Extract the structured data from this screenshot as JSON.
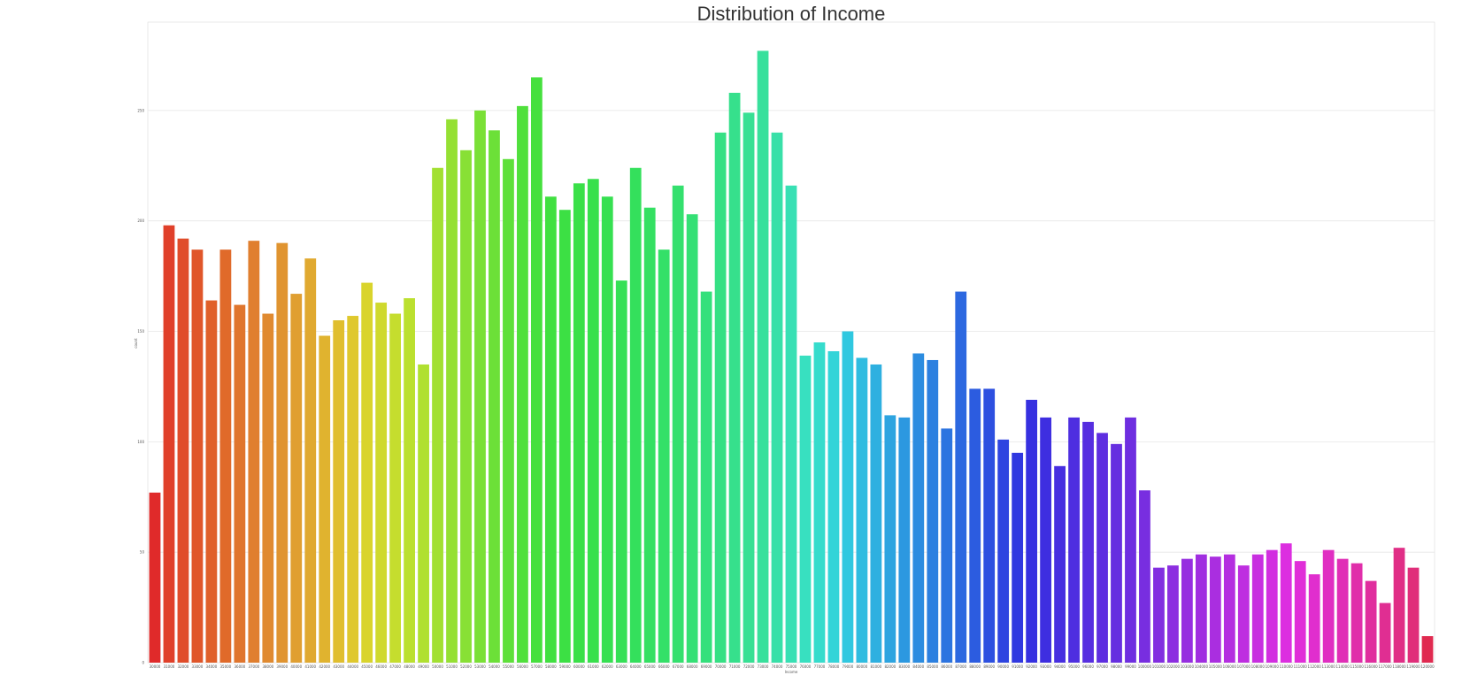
{
  "chart_data": {
    "type": "bar",
    "title": "Distribution of Income",
    "xlabel": "Income",
    "ylabel": "count",
    "ylim": [
      0,
      290
    ],
    "yticks": [
      0,
      50,
      100,
      150,
      200,
      250
    ],
    "grid": true,
    "legend": "none",
    "categories": [
      "30000",
      "31000",
      "32000",
      "33000",
      "34000",
      "35000",
      "36000",
      "37000",
      "38000",
      "39000",
      "40000",
      "41000",
      "42000",
      "43000",
      "44000",
      "45000",
      "46000",
      "47000",
      "48000",
      "49000",
      "50000",
      "51000",
      "52000",
      "53000",
      "54000",
      "55000",
      "56000",
      "57000",
      "58000",
      "59000",
      "60000",
      "61000",
      "62000",
      "63000",
      "64000",
      "65000",
      "66000",
      "67000",
      "68000",
      "69000",
      "70000",
      "71000",
      "72000",
      "73000",
      "74000",
      "75000",
      "76000",
      "77000",
      "78000",
      "79000",
      "80000",
      "81000",
      "82000",
      "83000",
      "84000",
      "85000",
      "86000",
      "87000",
      "88000",
      "89000",
      "90000",
      "91000",
      "92000",
      "93000",
      "94000",
      "95000",
      "96000",
      "97000",
      "98000",
      "99000",
      "100000",
      "101000",
      "102000",
      "103000",
      "104000",
      "105000",
      "106000",
      "107000",
      "108000",
      "109000",
      "110000",
      "111000",
      "112000",
      "113000",
      "114000",
      "115000",
      "116000",
      "117000",
      "118000",
      "119000",
      "120000"
    ],
    "values": [
      77,
      198,
      192,
      187,
      164,
      187,
      162,
      191,
      158,
      190,
      167,
      183,
      148,
      155,
      157,
      172,
      163,
      158,
      165,
      135,
      224,
      246,
      232,
      250,
      241,
      228,
      252,
      265,
      211,
      205,
      217,
      219,
      211,
      173,
      224,
      206,
      187,
      216,
      203,
      168,
      240,
      258,
      249,
      277,
      240,
      216,
      139,
      145,
      141,
      150,
      138,
      135,
      112,
      111,
      140,
      137,
      106,
      168,
      124,
      124,
      101,
      95,
      119,
      111,
      89,
      111,
      109,
      104,
      99,
      111,
      78,
      43,
      44,
      47,
      49,
      48,
      49,
      44,
      49,
      51,
      54,
      46,
      40,
      51,
      47,
      45,
      37,
      27,
      52,
      43,
      12
    ],
    "colors": [
      "#e02a2a",
      "#e0402a",
      "#e04c2a",
      "#e0562a",
      "#e0602a",
      "#e06a2a",
      "#e0752d",
      "#e07f2f",
      "#e08a30",
      "#e09430",
      "#e09f31",
      "#e0a930",
      "#e0b32f",
      "#e0be2e",
      "#dfc82d",
      "#d9d42c",
      "#cfd92d",
      "#c5dd2e",
      "#bbe02f",
      "#b0e030",
      "#a2e031",
      "#95e033",
      "#88e035",
      "#7ae036",
      "#6ce038",
      "#5ee03a",
      "#50e03c",
      "#46e03e",
      "#40e040",
      "#3ce044",
      "#3ae048",
      "#38e04c",
      "#36e051",
      "#35e056",
      "#34e05c",
      "#34e062",
      "#34e068",
      "#34e06e",
      "#34e075",
      "#34e07c",
      "#35e084",
      "#36e08c",
      "#37e094",
      "#38e09c",
      "#38e0a8",
      "#38e0b4",
      "#38e0c0",
      "#36dccc",
      "#33d4d8",
      "#30c8e0",
      "#2fbce0",
      "#2eb0e0",
      "#2da4e0",
      "#2c98e0",
      "#2c8ce0",
      "#2c80e0",
      "#2c74e0",
      "#2c68e0",
      "#2c5ce0",
      "#2d50e0",
      "#2e44e0",
      "#3038e0",
      "#3630e0",
      "#3e2ee0",
      "#462ee0",
      "#4e2ee0",
      "#562ee0",
      "#5e2ee0",
      "#662ee0",
      "#6e2ee0",
      "#782ee0",
      "#822ee0",
      "#8c2ee0",
      "#962ee0",
      "#a02ee0",
      "#aa2ee0",
      "#b42ee0",
      "#be2ee0",
      "#c82ee0",
      "#d22ee0",
      "#dc2ee0",
      "#e02ed8",
      "#e02ece",
      "#e02ec2",
      "#e02eb6",
      "#e02eaa",
      "#e02e9e",
      "#e02e92",
      "#e02e86",
      "#e02e7a",
      "#e02a50"
    ]
  }
}
